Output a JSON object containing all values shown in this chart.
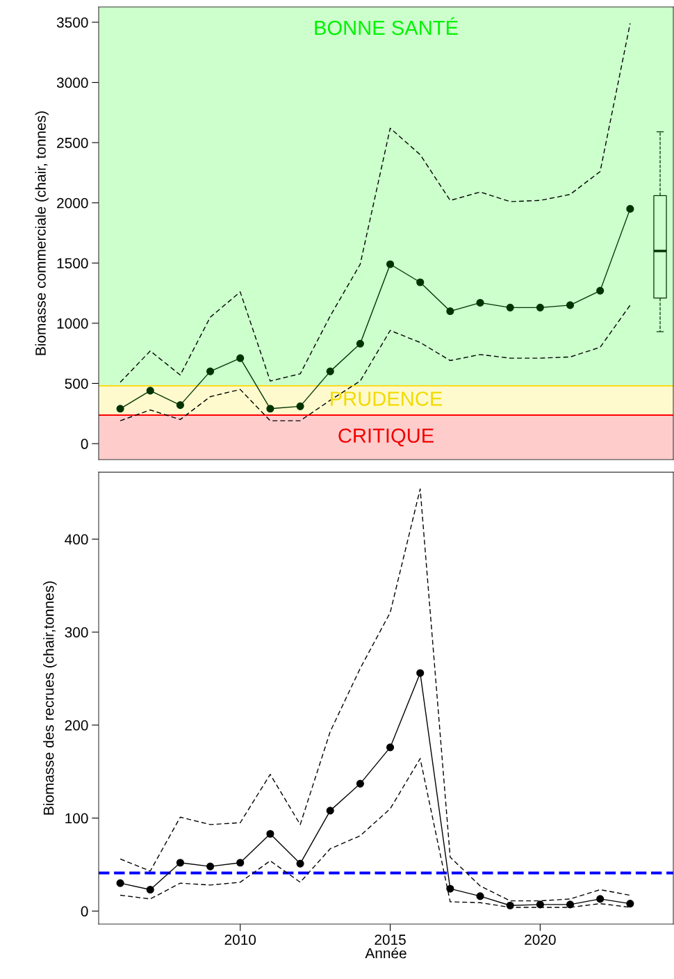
{
  "chart_data": [
    {
      "type": "line",
      "ylabel": "Biomasse commerciale (chair, tonnes)",
      "x": [
        2006,
        2007,
        2008,
        2009,
        2010,
        2011,
        2012,
        2013,
        2014,
        2015,
        2016,
        2017,
        2018,
        2019,
        2020,
        2021,
        2022,
        2023
      ],
      "series": [
        {
          "color": "#003300",
          "marker": "circle",
          "line_style": "solid",
          "values": [
            290,
            440,
            320,
            600,
            710,
            290,
            310,
            600,
            830,
            1490,
            1340,
            1100,
            1170,
            1130,
            1130,
            1150,
            1270,
            1950
          ]
        },
        {
          "color": "#000000",
          "marker": "none",
          "line_style": "dashed",
          "values": [
            510,
            770,
            570,
            1050,
            1260,
            520,
            580,
            1060,
            1490,
            2620,
            2400,
            2020,
            2090,
            2010,
            2020,
            2070,
            2260,
            3490
          ]
        },
        {
          "color": "#000000",
          "marker": "none",
          "line_style": "dashed",
          "values": [
            190,
            280,
            200,
            390,
            450,
            190,
            190,
            360,
            520,
            940,
            840,
            690,
            740,
            710,
            710,
            720,
            800,
            1150
          ]
        },
        {
          "type": "box",
          "x": [
            2024
          ],
          "color": "#003300",
          "boxes": [
            {
              "low": 930,
              "q1": 1210,
              "median": 1600,
              "q3": 2060,
              "high": 2590
            }
          ]
        }
      ],
      "xlim": [
        2005.28,
        2024.44
      ],
      "ylim": [
        -133,
        3627
      ],
      "yticks": [
        0,
        500,
        1000,
        1500,
        2000,
        2500,
        3000,
        3500
      ],
      "bands": [
        {
          "axis": "y",
          "from": -133,
          "to": 237,
          "label": "CRITIQUE",
          "color": "#ffcccc"
        },
        {
          "axis": "y",
          "from": 237,
          "to": 480,
          "label": "PRUDENCE",
          "color": "#fffacd"
        },
        {
          "axis": "y",
          "from": 480,
          "to": 3627,
          "label": "BONNE SANTÉ",
          "color": "#ccffcc"
        }
      ],
      "ref_lines": [
        {
          "axis": "y",
          "value": 237,
          "color": "#ff0000",
          "line_style": "solid"
        },
        {
          "axis": "y",
          "value": 480,
          "color": "#ffd700",
          "line_style": "solid"
        }
      ],
      "tick_labels": "y",
      "grid": false
    },
    {
      "type": "line",
      "xlabel": "Année",
      "ylabel": "Biomasse des recrues (chair,tonnes)",
      "x": [
        2006,
        2007,
        2008,
        2009,
        2010,
        2011,
        2012,
        2013,
        2014,
        2015,
        2016,
        2017,
        2018,
        2019,
        2020,
        2021,
        2022,
        2023
      ],
      "series": [
        {
          "color": "#000000",
          "marker": "circle",
          "line_style": "solid",
          "values": [
            30,
            23,
            52,
            48,
            52,
            83,
            51,
            108,
            137,
            176,
            256,
            24,
            16,
            6,
            7,
            7,
            13,
            8
          ]
        },
        {
          "color": "#000000",
          "marker": "none",
          "line_style": "dashed",
          "values": [
            56,
            43,
            101,
            93,
            95,
            147,
            93,
            193,
            261,
            321,
            454,
            58,
            27,
            11,
            11,
            13,
            23,
            17
          ]
        },
        {
          "color": "#000000",
          "marker": "none",
          "line_style": "dashed",
          "values": [
            17,
            13,
            30,
            28,
            31,
            54,
            31,
            67,
            81,
            110,
            164,
            10,
            9,
            4,
            4,
            4,
            8,
            4
          ]
        }
      ],
      "xlim": [
        2005.28,
        2024.44
      ],
      "xticks": [
        2010,
        2015,
        2020
      ],
      "ylim": [
        -14,
        472
      ],
      "yticks": [
        0,
        100,
        200,
        300,
        400
      ],
      "ref_lines": [
        {
          "axis": "y",
          "value": 41,
          "color": "#0000ff",
          "line_style": "dashed"
        }
      ],
      "grid": false
    }
  ]
}
